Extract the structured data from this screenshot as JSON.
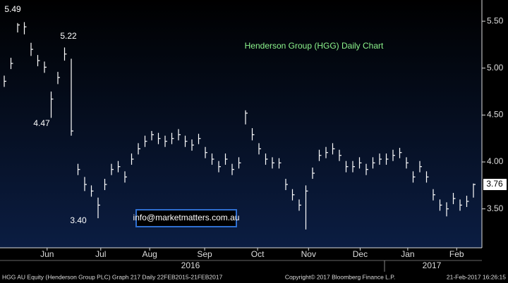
{
  "chart_data": {
    "type": "ohlc",
    "title": "Henderson Group (HGG) Daily Chart",
    "color": "#ffffff",
    "high": [
      4.92,
      5.11,
      5.48,
      5.49,
      5.27,
      5.14,
      5.07,
      4.75,
      4.96,
      5.22,
      5.1,
      3.98,
      3.84,
      3.75,
      3.62,
      3.82,
      3.98,
      4.01,
      3.9,
      4.09,
      4.2,
      4.28,
      4.33,
      4.31,
      4.28,
      4.31,
      4.35,
      4.28,
      4.24,
      4.3,
      4.16,
      4.09,
      4.01,
      4.09,
      3.98,
      4.05,
      4.55,
      4.36,
      4.2,
      4.09,
      4.05,
      4.04,
      3.82,
      3.71,
      3.6,
      3.75,
      3.94,
      4.13,
      4.16,
      4.2,
      4.13,
      4.01,
      4.01,
      4.05,
      3.98,
      4.05,
      4.09,
      4.09,
      4.13,
      4.15,
      4.05,
      3.9,
      4.01,
      3.9,
      3.71,
      3.6,
      3.57,
      3.67,
      3.6,
      3.64,
      3.77
    ],
    "low": [
      4.8,
      4.99,
      5.38,
      5.36,
      5.13,
      5.02,
      4.95,
      4.47,
      4.83,
      5.08,
      4.28,
      3.86,
      3.69,
      3.63,
      3.4,
      3.7,
      3.86,
      3.89,
      3.78,
      3.97,
      4.08,
      4.16,
      4.23,
      4.19,
      4.16,
      4.19,
      4.23,
      4.16,
      4.12,
      4.19,
      4.04,
      3.97,
      3.89,
      3.97,
      3.86,
      3.93,
      4.4,
      4.23,
      4.08,
      3.97,
      3.93,
      3.93,
      3.7,
      3.59,
      3.48,
      3.28,
      3.82,
      4.01,
      4.04,
      4.08,
      4.01,
      3.89,
      3.89,
      3.93,
      3.86,
      3.93,
      3.97,
      3.97,
      4.01,
      4.04,
      3.93,
      3.78,
      3.89,
      3.78,
      3.59,
      3.48,
      3.42,
      3.55,
      3.48,
      3.52,
      3.62
    ],
    "close": [
      4.86,
      5.05,
      5.46,
      5.44,
      5.2,
      5.08,
      5.01,
      4.67,
      4.9,
      5.15,
      4.33,
      3.92,
      3.76,
      3.69,
      3.54,
      3.76,
      3.92,
      3.95,
      3.84,
      4.03,
      4.14,
      4.22,
      4.29,
      4.25,
      4.22,
      4.25,
      4.29,
      4.22,
      4.18,
      4.25,
      4.1,
      4.03,
      3.95,
      4.03,
      3.92,
      3.99,
      4.52,
      4.29,
      4.14,
      4.03,
      3.99,
      3.99,
      3.76,
      3.65,
      3.54,
      3.69,
      3.88,
      4.07,
      4.1,
      4.14,
      4.07,
      3.95,
      3.95,
      3.99,
      3.92,
      3.99,
      4.03,
      4.03,
      4.07,
      4.1,
      3.99,
      3.84,
      3.95,
      3.84,
      3.65,
      3.54,
      3.5,
      3.61,
      3.54,
      3.58,
      3.76
    ],
    "last_price": {
      "value": 3.76,
      "label": "3.76"
    },
    "ylim": [
      3.085,
      5.726
    ],
    "yticks": [
      {
        "value": 5.5,
        "label": "5.50"
      },
      {
        "value": 5.0,
        "label": "5.00"
      },
      {
        "value": 4.5,
        "label": "4.50"
      },
      {
        "value": 4.0,
        "label": "4.00"
      },
      {
        "value": 3.5,
        "label": "3.50"
      }
    ],
    "xticks": [
      {
        "value": 6.4,
        "label": "Jun"
      },
      {
        "value": 14.4,
        "label": "Jul"
      },
      {
        "value": 21.7,
        "label": "Aug"
      },
      {
        "value": 29.9,
        "label": "Sep"
      },
      {
        "value": 37.8,
        "label": "Oct"
      },
      {
        "value": 45.4,
        "label": "Nov"
      },
      {
        "value": 53.1,
        "label": "Dec"
      },
      {
        "value": 60.2,
        "label": "Jan"
      },
      {
        "value": 67.5,
        "label": "Feb"
      }
    ],
    "years": [
      "2016",
      "2017"
    ],
    "annotations": [
      "5.49",
      "5.22",
      "4.47",
      "3.40"
    ],
    "watermark": "info@marketmatters.com.au",
    "footer": {
      "left": "HGG AU Equity (Henderson Group PLC) Graph 217  Daily 22FEB2015-21FEB2017",
      "center": "Copyright© 2017 Bloomberg Finance L.P.",
      "right": "21-Feb-2017 16:26:15"
    }
  }
}
